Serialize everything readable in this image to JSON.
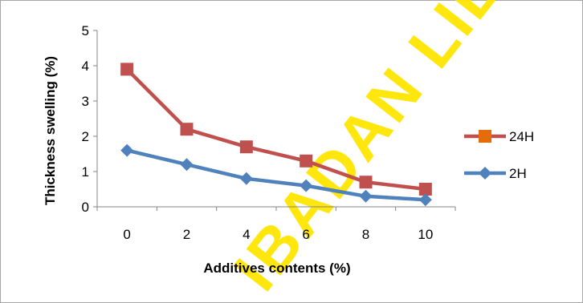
{
  "chart_data": {
    "type": "line",
    "title": "",
    "xlabel": "Additives contents (%)",
    "ylabel": "Thickness swelling (%)",
    "x": [
      0,
      2,
      4,
      6,
      8,
      10
    ],
    "ylim": [
      0,
      5
    ],
    "yticks": [
      0,
      1,
      2,
      3,
      4,
      5
    ],
    "grid": false,
    "legend_position": "right",
    "series": [
      {
        "name": "24H",
        "values": [
          3.9,
          2.2,
          1.7,
          1.3,
          0.7,
          0.5
        ],
        "line_color": "#C0504D",
        "marker": "square",
        "marker_color": "#C0504D",
        "legend_marker_color": "#E46C0A"
      },
      {
        "name": "2H",
        "values": [
          1.6,
          1.2,
          0.8,
          0.6,
          0.3,
          0.2
        ],
        "line_color": "#4F81BD",
        "marker": "diamond",
        "marker_color": "#4F81BD"
      }
    ],
    "watermark": {
      "text": "IBADAN LIB",
      "color": "#FFE600"
    }
  }
}
